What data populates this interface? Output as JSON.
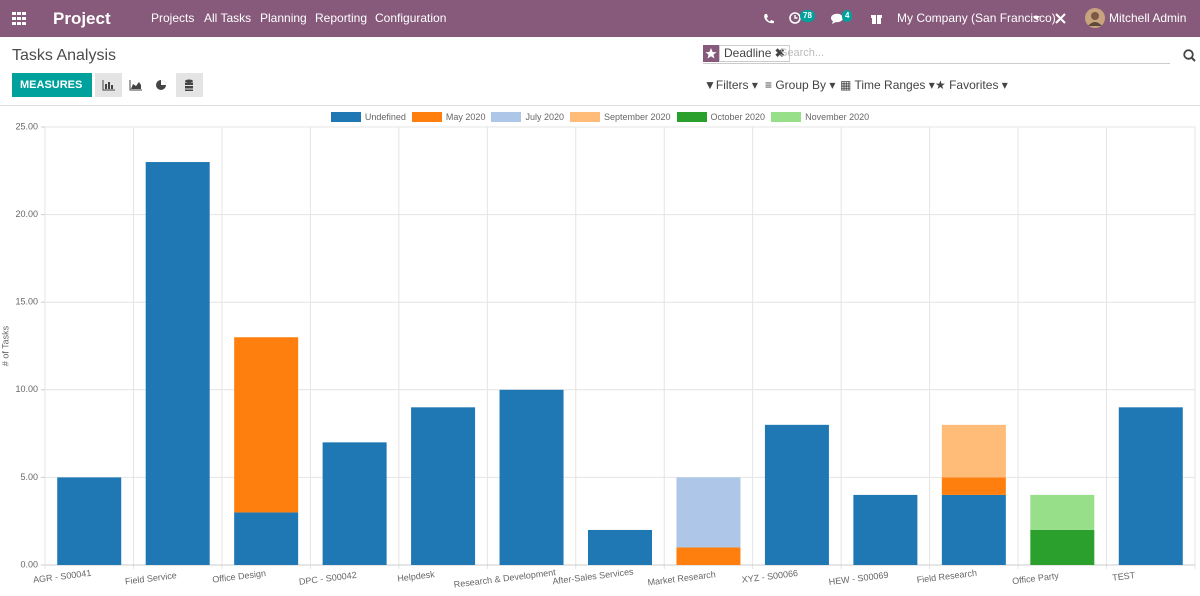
{
  "navbar": {
    "app": "Project",
    "menu": [
      "Projects",
      "All Tasks",
      "Planning",
      "Reporting",
      "Configuration"
    ],
    "activity_count": 78,
    "message_count": 4,
    "company": "My Company (San Francisco)",
    "user": "Mitchell Admin"
  },
  "control_panel": {
    "breadcrumb": "Tasks Analysis",
    "facet": "Deadline",
    "search_placeholder": "Search...",
    "measures": "MEASURES",
    "filters": [
      "Filters",
      "Group By",
      "Time Ranges",
      "Favorites"
    ]
  },
  "chart_data": {
    "type": "bar",
    "stacked": true,
    "y_label": "# of Tasks",
    "categories": [
      "AGR - S00041",
      "Field Service",
      "Office Design",
      "DPC - S00042",
      "Helpdesk",
      "Research & Development",
      "After-Sales Services",
      "Market Research",
      "XYZ - S00066",
      "HEW - S00069",
      "Field Research",
      "Office Party",
      "TEST"
    ],
    "series": [
      {
        "name": "Undefined",
        "color": "#1f77b4",
        "values": [
          5,
          23,
          3,
          7,
          9,
          10,
          2,
          0,
          8,
          4,
          4,
          0,
          9
        ]
      },
      {
        "name": "May 2020",
        "color": "#ff7f0e",
        "values": [
          0,
          0,
          10,
          0,
          0,
          0,
          0,
          1,
          0,
          0,
          1,
          0,
          0
        ]
      },
      {
        "name": "July 2020",
        "color": "#aec7e8",
        "values": [
          0,
          0,
          0,
          0,
          0,
          0,
          0,
          4,
          0,
          0,
          0,
          0,
          0
        ]
      },
      {
        "name": "September 2020",
        "color": "#ffbb78",
        "values": [
          0,
          0,
          0,
          0,
          0,
          0,
          0,
          0,
          0,
          0,
          3,
          0,
          0
        ]
      },
      {
        "name": "October 2020",
        "color": "#2ca02c",
        "values": [
          0,
          0,
          0,
          0,
          0,
          0,
          0,
          0,
          0,
          0,
          0,
          2,
          0
        ]
      },
      {
        "name": "November 2020",
        "color": "#98df8a",
        "values": [
          0,
          0,
          0,
          0,
          0,
          0,
          0,
          0,
          0,
          0,
          0,
          2,
          0
        ]
      }
    ],
    "ylim": [
      0,
      25
    ],
    "yticks": [
      {
        "value": 0,
        "label": "0.00"
      },
      {
        "value": 5,
        "label": "5.00"
      },
      {
        "value": 10,
        "label": "10.00"
      },
      {
        "value": 15,
        "label": "15.00"
      },
      {
        "value": 20,
        "label": "20.00"
      },
      {
        "value": 25,
        "label": "25.00"
      }
    ],
    "grid": true,
    "legend": "top"
  }
}
